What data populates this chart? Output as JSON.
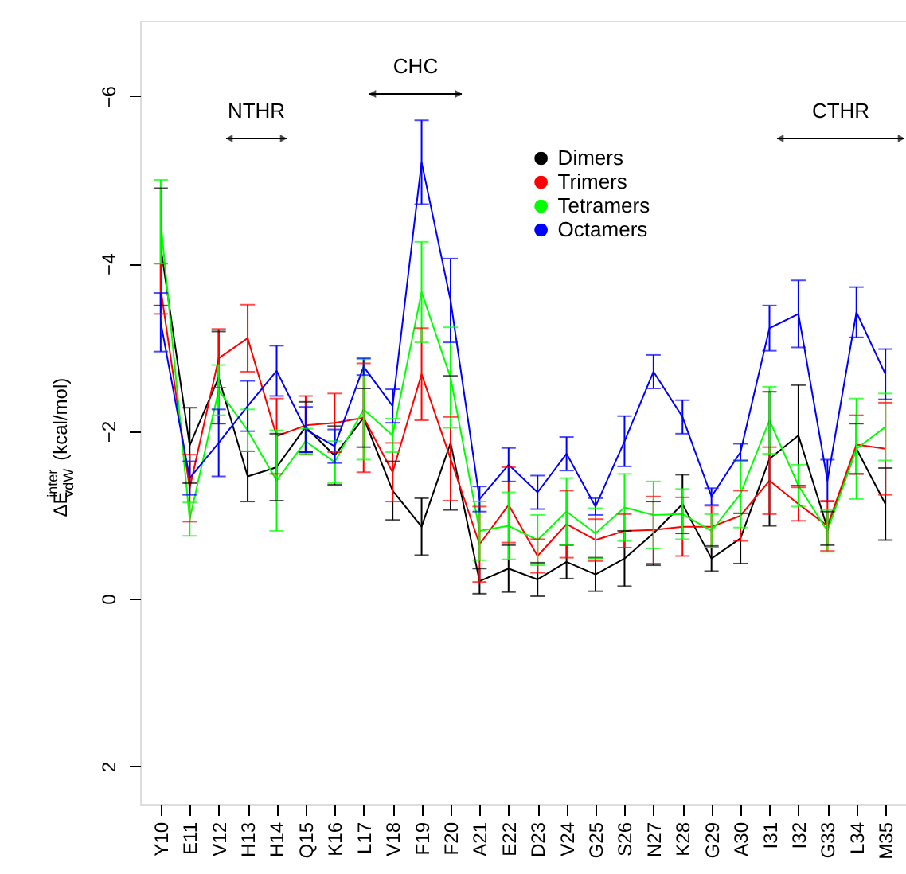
{
  "chart_data": {
    "type": "line",
    "ylabel": "ΔE$^{inter}$$_{vdW}$ (kcal/mol)",
    "categories": [
      "Y10",
      "E11",
      "V12",
      "H13",
      "H14",
      "Q15",
      "K16",
      "L17",
      "V18",
      "F19",
      "F20",
      "A21",
      "E22",
      "D23",
      "V24",
      "G25",
      "S26",
      "N27",
      "K28",
      "G29",
      "A30",
      "I31",
      "I32",
      "G33",
      "L34",
      "M35"
    ],
    "series": [
      {
        "name": "Dimers",
        "color": "#000000",
        "values": [
          -4.2,
          -1.83,
          -2.64,
          -1.46,
          -1.57,
          -2.05,
          -1.71,
          -2.16,
          -1.29,
          -0.86,
          -1.86,
          -0.21,
          -0.36,
          -0.23,
          -0.44,
          -0.29,
          -0.48,
          -0.78,
          -1.13,
          -0.48,
          -0.72,
          -1.67,
          -1.95,
          -0.84,
          -1.79,
          -1.13
        ],
        "errors": [
          0.7,
          0.45,
          0.55,
          0.3,
          0.4,
          0.3,
          0.35,
          0.35,
          0.35,
          0.34,
          0.8,
          0.15,
          0.28,
          0.2,
          0.2,
          0.2,
          0.33,
          0.38,
          0.35,
          0.15,
          0.3,
          0.8,
          0.6,
          0.2,
          0.3,
          0.43
        ]
      },
      {
        "name": "Trimers",
        "color": "#ff0000",
        "values": [
          -3.7,
          -1.32,
          -2.87,
          -3.11,
          -1.94,
          -2.07,
          -2.1,
          -2.16,
          -1.51,
          -2.68,
          -1.67,
          -0.65,
          -1.12,
          -0.51,
          -0.89,
          -0.7,
          -0.81,
          -0.82,
          -0.86,
          -0.86,
          -0.99,
          -1.41,
          -1.13,
          -0.87,
          -1.84,
          -1.79
        ],
        "errors": [
          0.3,
          0.4,
          0.35,
          0.4,
          0.45,
          0.35,
          0.35,
          0.65,
          0.35,
          0.55,
          0.5,
          0.45,
          0.45,
          0.2,
          0.4,
          0.25,
          0.2,
          0.4,
          0.35,
          0.25,
          0.3,
          0.4,
          0.2,
          0.3,
          0.35,
          0.55
        ]
      },
      {
        "name": "Tetramers",
        "color": "#00ff00",
        "values": [
          -4.5,
          -0.95,
          -2.49,
          -2.01,
          -1.41,
          -1.88,
          -1.63,
          -2.26,
          -1.95,
          -3.66,
          -2.64,
          -0.81,
          -0.87,
          -0.7,
          -1.04,
          -0.78,
          -1.09,
          -1.0,
          -1.01,
          -0.81,
          -1.25,
          -2.13,
          -1.35,
          -0.81,
          -1.79,
          -2.05
        ],
        "errors": [
          0.5,
          0.2,
          0.3,
          0.25,
          0.6,
          0.15,
          0.25,
          0.6,
          0.2,
          0.6,
          0.6,
          0.35,
          0.4,
          0.3,
          0.4,
          0.3,
          0.4,
          0.4,
          0.3,
          0.2,
          0.4,
          0.4,
          0.25,
          0.25,
          0.6,
          0.4
        ]
      },
      {
        "name": "Octamers",
        "color": "#0000ff",
        "values": [
          -3.3,
          -1.44,
          -1.86,
          -2.3,
          -2.72,
          -2.02,
          -1.82,
          -2.77,
          -2.3,
          -5.21,
          -3.56,
          -1.19,
          -1.6,
          -1.27,
          -1.73,
          -1.1,
          -1.88,
          -2.71,
          -2.17,
          -1.22,
          -1.75,
          -3.23,
          -3.4,
          -1.41,
          -3.42,
          -2.68
        ],
        "errors": [
          0.35,
          0.2,
          0.4,
          0.3,
          0.3,
          0.27,
          0.2,
          0.1,
          0.2,
          0.5,
          0.5,
          0.15,
          0.2,
          0.2,
          0.2,
          0.1,
          0.3,
          0.2,
          0.2,
          0.1,
          0.1,
          0.27,
          0.4,
          0.25,
          0.3,
          0.3
        ]
      }
    ],
    "ylim": [
      2.45,
      -6.9
    ],
    "yticks": [
      -6,
      -4,
      -2,
      0,
      2
    ],
    "annotations": [
      "NTHR",
      "CHC",
      "CTHR"
    ],
    "legend": "top right",
    "grid": false
  }
}
